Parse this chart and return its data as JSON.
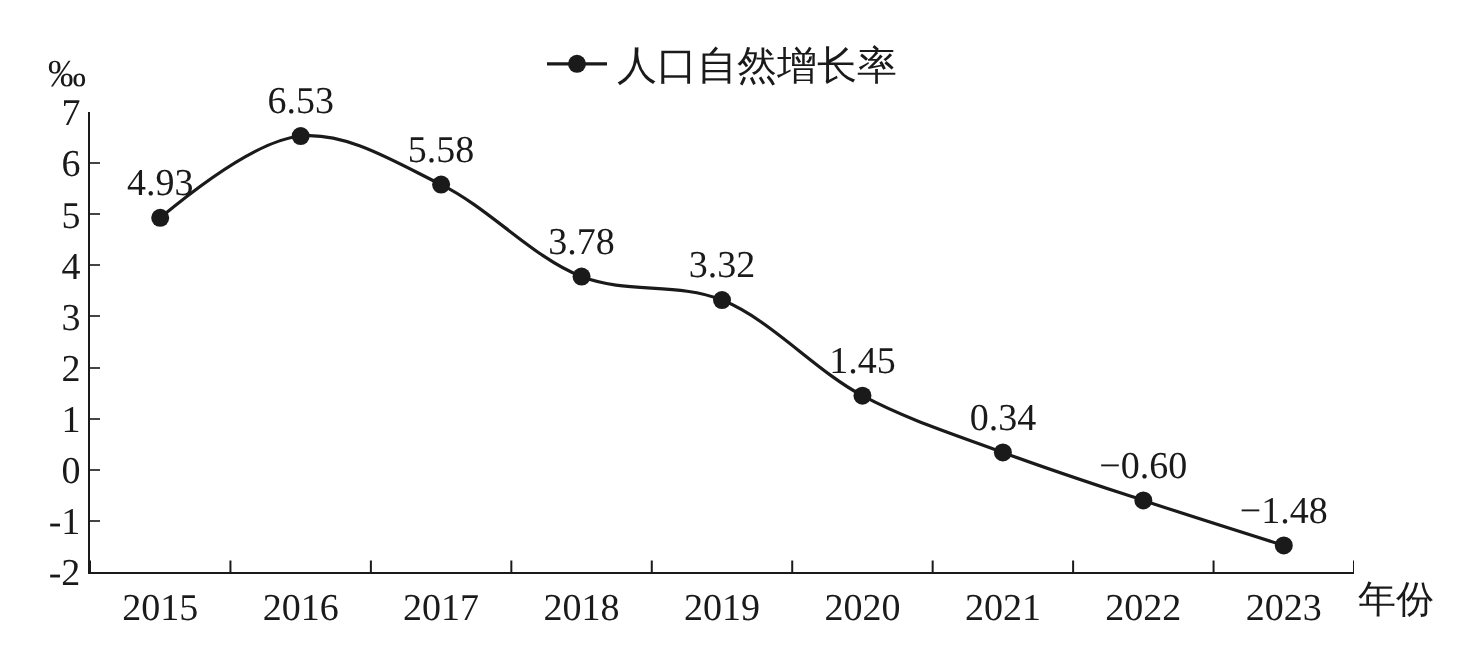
{
  "chart_data": {
    "type": "line",
    "xlabel": "年份",
    "ylabel": "‰",
    "categories": [
      "2015",
      "2016",
      "2017",
      "2018",
      "2019",
      "2020",
      "2021",
      "2022",
      "2023"
    ],
    "series": [
      {
        "name": "人口自然增长率",
        "color": "#1a1a1a",
        "values": [
          4.93,
          6.53,
          5.58,
          3.78,
          3.32,
          1.45,
          0.34,
          -0.6,
          -1.48
        ]
      }
    ],
    "value_labels": [
      "4.93",
      "6.53",
      "5.58",
      "3.78",
      "3.32",
      "1.45",
      "0.34",
      "−0.60",
      "−1.48"
    ],
    "ylim": [
      -2,
      7
    ],
    "yticks": [
      -2,
      -1,
      0,
      1,
      2,
      3,
      4,
      5,
      6,
      7
    ],
    "legend": "top",
    "marker": "circle",
    "line_style": "solid"
  }
}
